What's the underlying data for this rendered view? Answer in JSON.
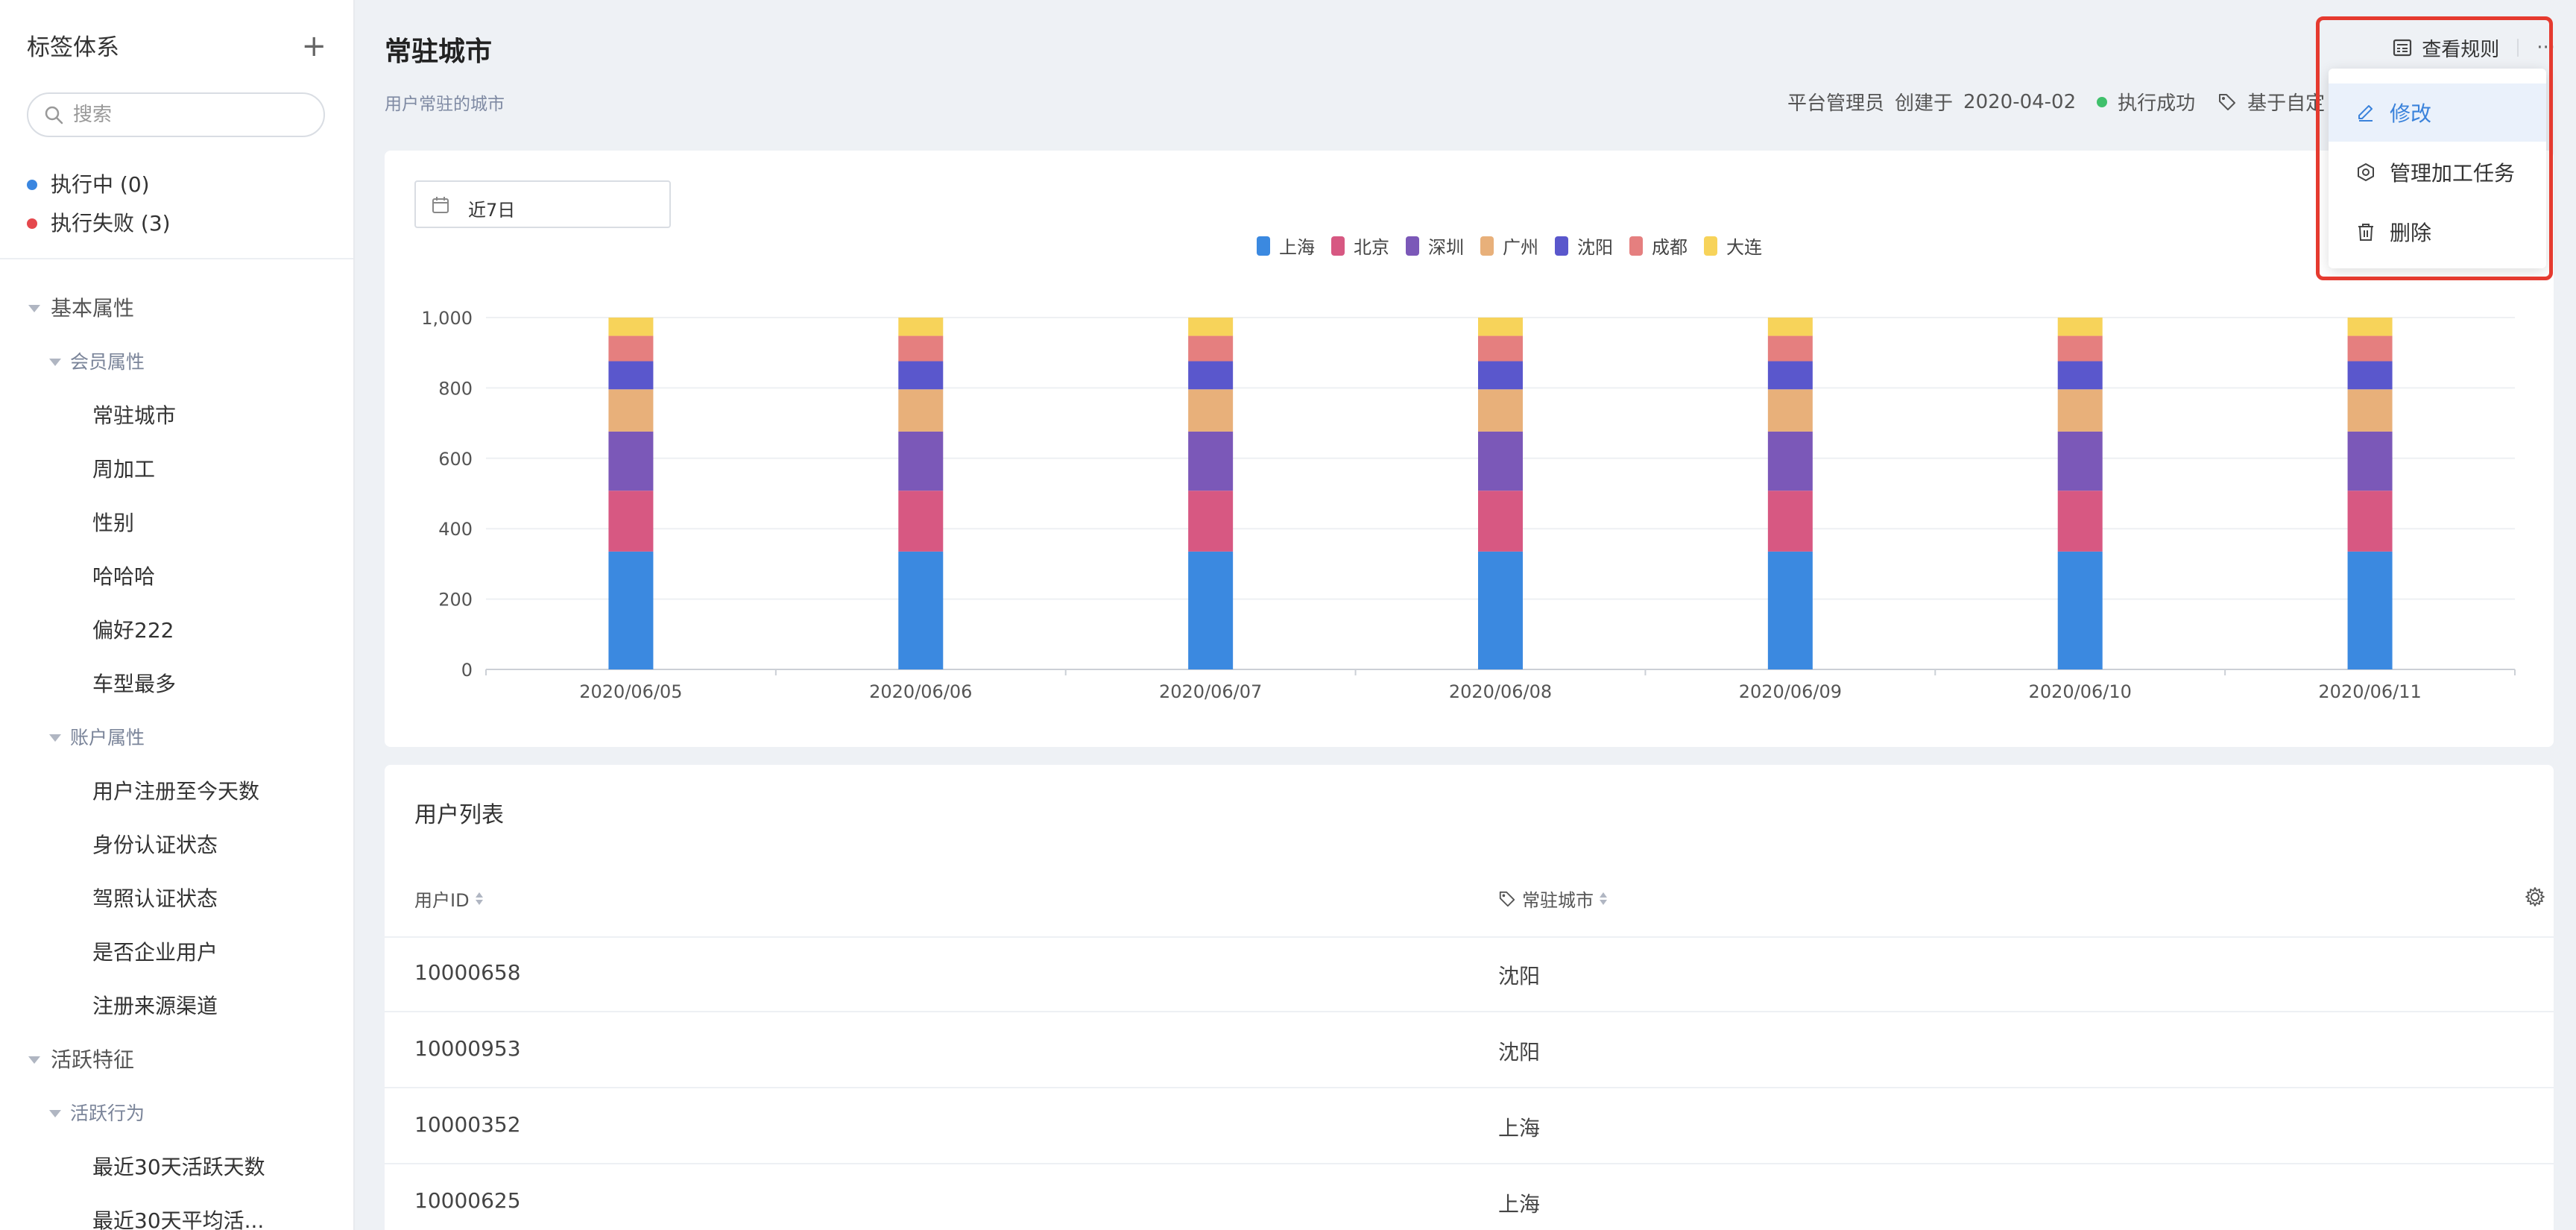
{
  "sidebar": {
    "title": "标签体系",
    "add_label": "+",
    "search_placeholder": "搜索",
    "status": [
      {
        "label": "执行中 (0)",
        "color": "#3a86e0"
      },
      {
        "label": "执行失败 (3)",
        "color": "#e5484d"
      }
    ],
    "tree": [
      {
        "level": 1,
        "label": "基本属性",
        "caret": true
      },
      {
        "level": 2,
        "label": "会员属性",
        "caret": true
      },
      {
        "level": 3,
        "label": "常驻城市"
      },
      {
        "level": 3,
        "label": "周加工"
      },
      {
        "level": 3,
        "label": "性别"
      },
      {
        "level": 3,
        "label": "哈哈哈"
      },
      {
        "level": 3,
        "label": "偏好222"
      },
      {
        "level": 3,
        "label": "车型最多"
      },
      {
        "level": 2,
        "label": "账户属性",
        "caret": true
      },
      {
        "level": 3,
        "label": "用户注册至今天数"
      },
      {
        "level": 3,
        "label": "身份认证状态"
      },
      {
        "level": 3,
        "label": "驾照认证状态"
      },
      {
        "level": 3,
        "label": "是否企业用户"
      },
      {
        "level": 3,
        "label": "注册来源渠道"
      },
      {
        "level": 1,
        "label": "活跃特征",
        "caret": true
      },
      {
        "level": 2,
        "label": "活跃行为",
        "caret": true
      },
      {
        "level": 3,
        "label": "最近30天活跃天数"
      },
      {
        "level": 3,
        "label": "最近30天平均活..."
      }
    ]
  },
  "header": {
    "title": "常驻城市",
    "description": "用户常驻的城市",
    "view_rules_label": "查看规则",
    "more_label": "···",
    "meta": {
      "owner": "平台管理员",
      "created_label": "创建于",
      "created_date": "2020-04-02",
      "status": "执行成功",
      "tag_text": "基于自定"
    }
  },
  "dropdown": {
    "items": [
      {
        "label": "修改",
        "icon": "edit-icon",
        "active": true
      },
      {
        "label": "管理加工任务",
        "icon": "task-icon"
      },
      {
        "label": "删除",
        "icon": "trash-icon"
      }
    ],
    "highlight_color": "#e53a2f"
  },
  "filter": {
    "date_range": "近7日"
  },
  "chart_data": {
    "type": "bar",
    "stacked": true,
    "categories": [
      "2020/06/05",
      "2020/06/06",
      "2020/06/07",
      "2020/06/08",
      "2020/06/09",
      "2020/06/10",
      "2020/06/11"
    ],
    "ylim": [
      0,
      1000
    ],
    "yticks": [
      "0",
      "200",
      "400",
      "600",
      "800",
      "1,000"
    ],
    "grid": true,
    "legend_position": "top",
    "series": [
      {
        "name": "上海",
        "color": "#3b89e0",
        "values": [
          335,
          335,
          335,
          335,
          335,
          335,
          335
        ]
      },
      {
        "name": "北京",
        "color": "#d75882",
        "values": [
          173,
          173,
          173,
          173,
          173,
          173,
          173
        ]
      },
      {
        "name": "深圳",
        "color": "#7b58b8",
        "values": [
          168,
          168,
          168,
          168,
          168,
          168,
          168
        ]
      },
      {
        "name": "广州",
        "color": "#e8b07a",
        "values": [
          120,
          120,
          120,
          120,
          120,
          120,
          120
        ]
      },
      {
        "name": "沈阳",
        "color": "#5a57cc",
        "values": [
          80,
          80,
          80,
          80,
          80,
          80,
          80
        ]
      },
      {
        "name": "成都",
        "color": "#e57f7f",
        "values": [
          72,
          72,
          72,
          72,
          72,
          72,
          72
        ]
      },
      {
        "name": "大连",
        "color": "#f7d35a",
        "values": [
          52,
          52,
          52,
          52,
          52,
          52,
          52
        ]
      }
    ]
  },
  "table": {
    "title": "用户列表",
    "columns": [
      "用户ID",
      "常驻城市"
    ],
    "rows": [
      [
        "10000658",
        "沈阳"
      ],
      [
        "10000953",
        "沈阳"
      ],
      [
        "10000352",
        "上海"
      ],
      [
        "10000625",
        "上海"
      ]
    ]
  }
}
